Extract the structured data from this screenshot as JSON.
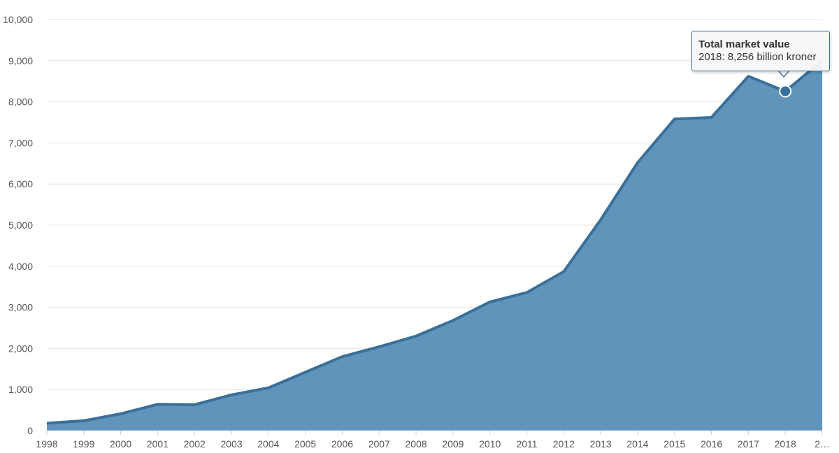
{
  "chart_data": {
    "type": "area",
    "x": [
      "1998",
      "1999",
      "2000",
      "2001",
      "2002",
      "2003",
      "2004",
      "2005",
      "2006",
      "2007",
      "2008",
      "2009",
      "2010",
      "2011",
      "2012",
      "2013",
      "2014",
      "2015",
      "2016",
      "2017",
      "2018",
      "2…"
    ],
    "series": [
      {
        "name": "Total market value",
        "values": [
          180,
          240,
          410,
          640,
          630,
          870,
          1040,
          1420,
          1800,
          2040,
          2300,
          2680,
          3130,
          3360,
          3870,
          5130,
          6520,
          7580,
          7620,
          8620,
          8256,
          9000
        ]
      }
    ],
    "yticks": [
      "0",
      "1,000",
      "2,000",
      "3,000",
      "4,000",
      "5,000",
      "6,000",
      "7,000",
      "8,000",
      "9,000",
      "10,000"
    ],
    "ylim": [
      0,
      10000
    ],
    "grid": true,
    "colors": {
      "area": "#6094bb",
      "line": "#3a6f99"
    },
    "tooltip": {
      "title": "Total market value",
      "text": "2018: 8,256 billion kroner",
      "highlight_index": 20
    }
  }
}
